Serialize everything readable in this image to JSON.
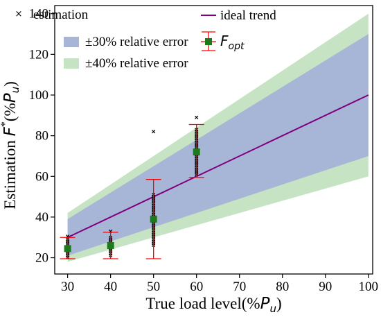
{
  "chart_data": {
    "type": "scatter",
    "xlabel": {
      "prefix": "True load level(%",
      "var": "P",
      "sub": "u",
      "suffix": ")"
    },
    "ylabel": {
      "prefix": "Estimation ",
      "var": "F",
      "sup": "*",
      "mid": "(%",
      "var2": "P",
      "sub": "u",
      "suffix": ")"
    },
    "xlim": [
      27,
      101
    ],
    "ylim": [
      12,
      144
    ],
    "xticks": [
      "30",
      "40",
      "50",
      "60",
      "70",
      "80",
      "90",
      "100"
    ],
    "yticks": [
      "20",
      "40",
      "60",
      "80",
      "100",
      "120",
      "140"
    ],
    "grid": false,
    "legend_position": "top-left",
    "legend": {
      "estimation": "estimation",
      "ideal": "ideal trend",
      "band30": "±30% relative error",
      "band40": "±40% relative error",
      "fopt_var": "F",
      "fopt_sub": "opt"
    },
    "colors": {
      "band40": "#c6e3c4",
      "band30": "#a7b6d6",
      "ideal": "#800080",
      "estimation": "#000000",
      "errorbar": "#ff0000",
      "fopt": "#1b7a1b"
    },
    "ideal_trend": {
      "x": [
        30,
        100
      ],
      "y": [
        30,
        100
      ]
    },
    "band_30": {
      "x": [
        30,
        100
      ],
      "lower": [
        21,
        70
      ],
      "upper": [
        39,
        130
      ]
    },
    "band_40": {
      "x": [
        30,
        100
      ],
      "lower": [
        18,
        60
      ],
      "upper": [
        42,
        140
      ]
    },
    "estimation_clusters": [
      {
        "x": 30,
        "y_min": 20,
        "y_max": 29,
        "outliers": [
          30.5
        ]
      },
      {
        "x": 40,
        "y_min": 21,
        "y_max": 30,
        "outliers": [
          33
        ]
      },
      {
        "x": 50,
        "y_min": 26,
        "y_max": 51,
        "outliers": [
          82
        ]
      },
      {
        "x": 60,
        "y_min": 60,
        "y_max": 83,
        "outliers": [
          89
        ]
      }
    ],
    "f_opt": [
      {
        "x": 30,
        "y": 24.5,
        "err_low": 19.5,
        "err_high": 30
      },
      {
        "x": 40,
        "y": 26,
        "err_low": 19.5,
        "err_high": 32.5
      },
      {
        "x": 50,
        "y": 39,
        "err_low": 19.5,
        "err_high": 58.5
      },
      {
        "x": 60,
        "y": 72,
        "err_low": 59.5,
        "err_high": 85.5
      }
    ]
  }
}
